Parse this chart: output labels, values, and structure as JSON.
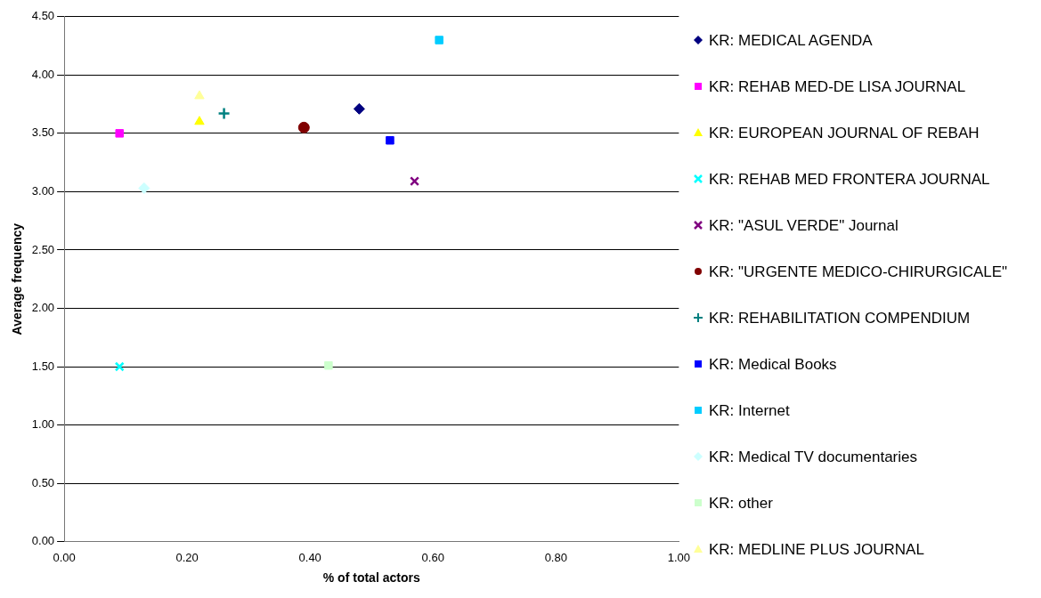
{
  "chart_data": {
    "type": "scatter",
    "xlabel": "% of total actors",
    "ylabel": "Average frequency",
    "xlim": [
      0,
      1
    ],
    "ylim": [
      0,
      4.5
    ],
    "xticks": [
      {
        "value": 0,
        "label": "0.00"
      },
      {
        "value": 0.2,
        "label": "0.20"
      },
      {
        "value": 0.4,
        "label": "0.40"
      },
      {
        "value": 0.6,
        "label": "0.60"
      },
      {
        "value": 0.8,
        "label": "0.80"
      },
      {
        "value": 1,
        "label": "1.00"
      }
    ],
    "yticks": [
      {
        "value": 0,
        "label": "0.00"
      },
      {
        "value": 0.5,
        "label": "0.50"
      },
      {
        "value": 1,
        "label": "1.00"
      },
      {
        "value": 1.5,
        "label": "1.50"
      },
      {
        "value": 2,
        "label": "2.00"
      },
      {
        "value": 2.5,
        "label": "2.50"
      },
      {
        "value": 3,
        "label": "3.00"
      },
      {
        "value": 3.5,
        "label": "3.50"
      },
      {
        "value": 4,
        "label": "4.00"
      },
      {
        "value": 4.5,
        "label": "4.50"
      }
    ],
    "grid": "y",
    "legend": "right",
    "series": [
      {
        "name": "KR: MEDICAL AGENDA",
        "color": "#000080",
        "marker": "diamond",
        "x": [
          0.48
        ],
        "values": [
          3.71
        ]
      },
      {
        "name": "KR: REHAB MED-DE LISA JOURNAL",
        "color": "#ff00ff",
        "marker": "square",
        "x": [
          0.09
        ],
        "values": [
          3.5
        ]
      },
      {
        "name": "KR: EUROPEAN JOURNAL OF REBAH",
        "color": "#ffff00",
        "marker": "triangle",
        "x": [
          0.22
        ],
        "values": [
          3.6
        ]
      },
      {
        "name": "KR: REHAB MED FRONTERA JOURNAL",
        "color": "#00ffff",
        "marker": "cross",
        "x": [
          0.09
        ],
        "values": [
          1.5
        ]
      },
      {
        "name": "KR: \"ASUL VERDE\" Journal",
        "color": "#800080",
        "marker": "cross",
        "x": [
          0.57
        ],
        "values": [
          3.09
        ]
      },
      {
        "name": "KR: \"URGENTE MEDICO-CHIRURGICALE\"",
        "color": "#800000",
        "marker": "circle",
        "x": [
          0.39
        ],
        "values": [
          3.55
        ]
      },
      {
        "name": "KR: REHABILITATION COMPENDIUM",
        "color": "#008080",
        "marker": "plus",
        "x": [
          0.26
        ],
        "values": [
          3.67
        ]
      },
      {
        "name": "KR: Medical Books",
        "color": "#0000ff",
        "marker": "square",
        "x": [
          0.53
        ],
        "values": [
          3.44
        ]
      },
      {
        "name": "KR: Internet",
        "color": "#00ccff",
        "marker": "square",
        "x": [
          0.61
        ],
        "values": [
          4.3
        ]
      },
      {
        "name": "KR: Medical TV documentaries",
        "color": "#ccffff",
        "marker": "diamond",
        "x": [
          0.13
        ],
        "values": [
          3.03
        ]
      },
      {
        "name": "KR: other",
        "color": "#ccffcc",
        "marker": "square",
        "x": [
          0.43
        ],
        "values": [
          1.51
        ]
      },
      {
        "name": "KR: MEDLINE PLUS JOURNAL",
        "color": "#ffff99",
        "marker": "triangle",
        "x": [
          0.22
        ],
        "values": [
          3.82
        ]
      }
    ]
  }
}
